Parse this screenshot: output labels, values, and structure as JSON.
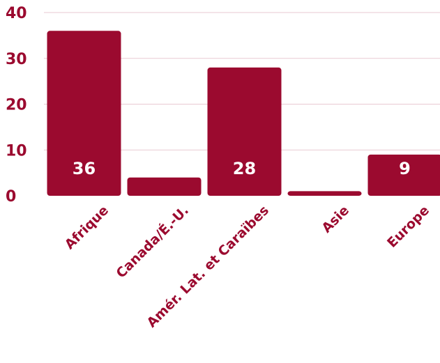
{
  "chart_data": {
    "type": "bar",
    "categories": [
      "Afrique",
      "Canada/É.-U.",
      "Amér. Lat. et Caraïbes",
      "Asie",
      "Europe"
    ],
    "values": [
      36,
      4,
      28,
      1,
      9
    ],
    "value_labels": [
      "36",
      "4",
      "28",
      "1",
      "9"
    ],
    "ylim": [
      0,
      40
    ],
    "y_ticks": [
      "0",
      "10",
      "20",
      "30",
      "40"
    ],
    "grid": true,
    "legend": "none",
    "colors": {
      "bar": "#9b0a2f",
      "text": "#9b0a2f",
      "value_text": "#ffffff",
      "grid": "#e8c9d2"
    }
  }
}
